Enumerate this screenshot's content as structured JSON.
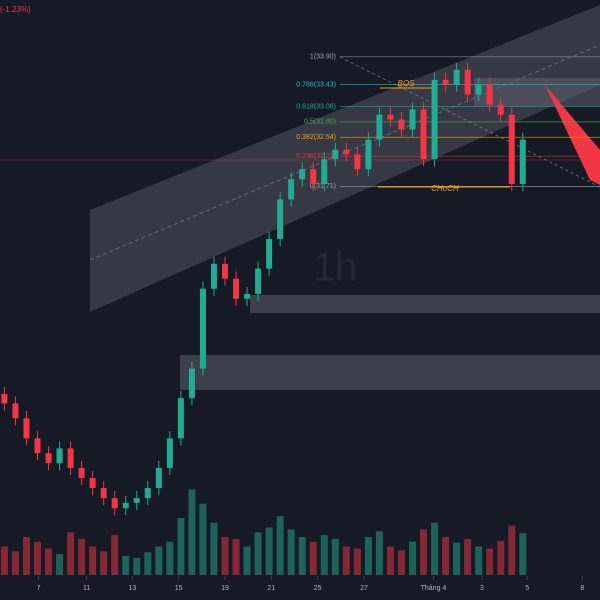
{
  "chart_data": {
    "type": "candlestick",
    "change_label": "(-1.23%)",
    "watermark": "1h",
    "colors": {
      "up": "#22ab94",
      "down": "#f23645",
      "fib": "#a0a4ad"
    },
    "ylim": [
      26.07,
      34.86
    ],
    "vlim": [
      0,
      100
    ],
    "xlim": [
      -0.4,
      54
    ],
    "xticks": [
      {
        "value": 3.1,
        "label": "7"
      },
      {
        "value": 7.45,
        "label": "11"
      },
      {
        "value": 11.6,
        "label": "13"
      },
      {
        "value": 15.8,
        "label": "15"
      },
      {
        "value": 20,
        "label": "19"
      },
      {
        "value": 24.2,
        "label": "21"
      },
      {
        "value": 28.4,
        "label": "25"
      },
      {
        "value": 32.6,
        "label": "27"
      },
      {
        "value": 38.9,
        "label": "Tháng 4"
      },
      {
        "value": 43.3,
        "label": "3"
      },
      {
        "value": 47.4,
        "label": "5"
      },
      {
        "value": 52.4,
        "label": "8"
      }
    ],
    "open": [
      28.2,
      28.04,
      27.79,
      27.45,
      27.2,
      27.03,
      27.28,
      26.95,
      26.78,
      26.61,
      26.44,
      26.27,
      26.36,
      26.44,
      26.61,
      26.95,
      27.45,
      28.13,
      28.63,
      29.98,
      30.4,
      30.15,
      29.81,
      29.89,
      30.32,
      30.82,
      31.49,
      31.83,
      32.0,
      31.75,
      32.17,
      32.33,
      32.25,
      32.0,
      32.5,
      32.92,
      32.84,
      32.67,
      33.01,
      32.17,
      33.51,
      33.43,
      33.68,
      33.26,
      33.43,
      33.09,
      32.92,
      31.75
    ],
    "high": [
      28.32,
      28.16,
      27.91,
      27.57,
      27.32,
      27.4,
      27.4,
      27.07,
      26.9,
      26.73,
      26.56,
      26.48,
      26.56,
      26.73,
      27.07,
      27.57,
      28.25,
      28.75,
      30.1,
      30.52,
      30.52,
      30.27,
      30.01,
      30.44,
      30.94,
      31.61,
      31.95,
      32.12,
      32.12,
      32.29,
      32.45,
      32.45,
      32.37,
      32.62,
      33.04,
      33.04,
      32.96,
      33.13,
      33.13,
      33.63,
      33.63,
      33.8,
      33.8,
      33.55,
      33.55,
      33.21,
      33.04,
      32.62
    ],
    "low": [
      27.92,
      27.67,
      27.33,
      27.08,
      26.91,
      26.91,
      26.83,
      26.66,
      26.49,
      26.32,
      26.15,
      26.15,
      26.24,
      26.32,
      26.49,
      26.83,
      27.33,
      28.01,
      28.51,
      29.86,
      30.03,
      29.69,
      29.69,
      29.77,
      30.2,
      30.7,
      31.37,
      31.71,
      31.63,
      31.63,
      32.05,
      32.13,
      31.88,
      31.88,
      32.38,
      32.72,
      32.55,
      32.55,
      32.05,
      32.05,
      33.31,
      33.31,
      33.14,
      33.14,
      32.97,
      32.8,
      31.63,
      31.63
    ],
    "close": [
      28.04,
      27.79,
      27.45,
      27.2,
      27.03,
      27.28,
      26.95,
      26.78,
      26.61,
      26.44,
      26.27,
      26.36,
      26.44,
      26.61,
      26.95,
      27.45,
      28.13,
      28.63,
      29.98,
      30.4,
      30.15,
      29.81,
      29.89,
      30.32,
      30.82,
      31.49,
      31.83,
      32.0,
      31.75,
      32.17,
      32.33,
      32.25,
      32.0,
      32.5,
      32.92,
      32.84,
      32.67,
      33.01,
      32.17,
      33.51,
      33.43,
      33.68,
      33.26,
      33.43,
      33.09,
      32.92,
      31.75,
      32.5
    ],
    "volume": [
      30,
      25,
      40,
      35,
      28,
      22,
      45,
      38,
      30,
      25,
      42,
      20,
      18,
      24,
      30,
      35,
      60,
      90,
      75,
      55,
      40,
      38,
      30,
      45,
      50,
      62,
      48,
      40,
      35,
      42,
      38,
      30,
      28,
      40,
      46,
      30,
      26,
      35,
      48,
      55,
      40,
      34,
      38,
      30,
      28,
      36,
      52,
      44
    ],
    "fib": [
      {
        "label": "1(33.90)",
        "value": 33.9
      },
      {
        "label": "0.786(33.43)",
        "value": 33.43
      },
      {
        "label": "0.618(33.06)",
        "value": 33.06
      },
      {
        "label": "0.5(32.80)",
        "value": 32.8
      },
      {
        "label": "0.382(32.54)",
        "value": 32.54
      },
      {
        "label": "0.236(32.22)",
        "value": 32.22
      },
      {
        "label": "0(31.71)",
        "value": 31.71
      }
    ],
    "bos": "BOS",
    "choch": "CHoCH"
  }
}
